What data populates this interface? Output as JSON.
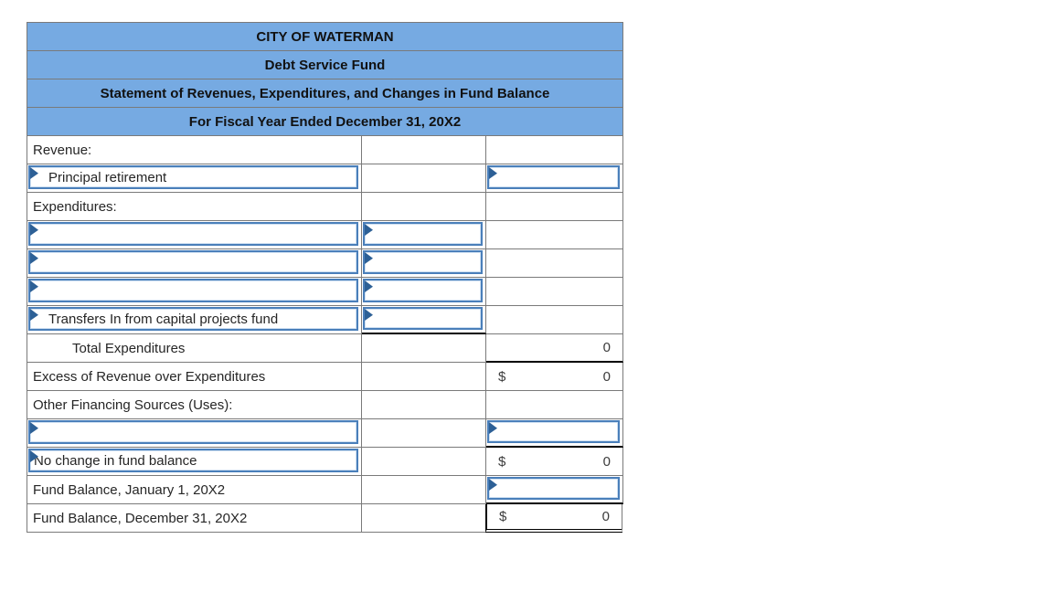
{
  "header": {
    "lines": [
      "CITY OF WATERMAN",
      "Debt Service Fund",
      "Statement of Revenues, Expenditures, and Changes in Fund Balance",
      "For Fiscal Year Ended December 31, 20X2"
    ]
  },
  "colors": {
    "header_bg": "#76aae2",
    "grid_line": "#7a7a7a",
    "input_border": "#4a7fba",
    "input_inner_line": "#cfe0f2",
    "input_flag": "#2d6096",
    "subtotal_rule": "#000000"
  },
  "icons": {
    "input_flag": "corner-flag-icon"
  },
  "table": {
    "rows": [
      {
        "name": "revenue-section",
        "c1": {
          "text": "Revenue:",
          "indent": 0
        },
        "c2": {},
        "c3": {}
      },
      {
        "name": "principal-retirement",
        "c1": {
          "text": "Principal retirement",
          "indent": 1,
          "input": true
        },
        "c2": {},
        "c3": {
          "input": true
        }
      },
      {
        "name": "expenditures-section",
        "c1": {
          "text": "Expenditures:",
          "indent": 0
        },
        "c2": {},
        "c3": {}
      },
      {
        "name": "expenditure-blank-1",
        "c1": {
          "input": true
        },
        "c2": {
          "input": true
        },
        "c3": {}
      },
      {
        "name": "expenditure-blank-2",
        "c1": {
          "input": true
        },
        "c2": {
          "input": true
        },
        "c3": {}
      },
      {
        "name": "expenditure-blank-3",
        "c1": {
          "input": true
        },
        "c2": {
          "input": true
        },
        "c3": {}
      },
      {
        "name": "transfers-in",
        "c1": {
          "text": "Transfers In from capital projects fund",
          "indent": 1,
          "input": true
        },
        "c2": {
          "input": true,
          "bb": "black"
        },
        "c3": {}
      },
      {
        "name": "total-expenditures",
        "c1": {
          "text": "Total Expenditures",
          "indent": 2
        },
        "c2": {},
        "c3": {
          "value": "0",
          "bb": "black"
        }
      },
      {
        "name": "excess-revenue",
        "c1": {
          "text": "Excess of Revenue over Expenditures",
          "indent": 0
        },
        "c2": {},
        "c3": {
          "prefix": "$",
          "value": "0"
        }
      },
      {
        "name": "other-financing",
        "c1": {
          "text": "Other Financing Sources (Uses):",
          "indent": 0
        },
        "c2": {},
        "c3": {}
      },
      {
        "name": "other-financing-blank",
        "c1": {
          "input": true
        },
        "c2": {},
        "c3": {
          "input": true,
          "bb": "black"
        }
      },
      {
        "name": "no-change",
        "c1": {
          "text": "No change in fund balance",
          "indent": 0,
          "input": true
        },
        "c2": {},
        "c3": {
          "prefix": "$",
          "value": "0"
        }
      },
      {
        "name": "fund-balance-jan",
        "c1": {
          "text": "Fund Balance, January 1, 20X2",
          "indent": 0
        },
        "c2": {},
        "c3": {
          "input": true,
          "bb": "black"
        }
      },
      {
        "name": "fund-balance-dec",
        "c1": {
          "text": "Fund Balance, December 31, 20X2",
          "indent": 0
        },
        "c2": {},
        "c3": {
          "prefix": "$",
          "value": "0",
          "bb": "double",
          "lb": "black"
        }
      }
    ]
  }
}
